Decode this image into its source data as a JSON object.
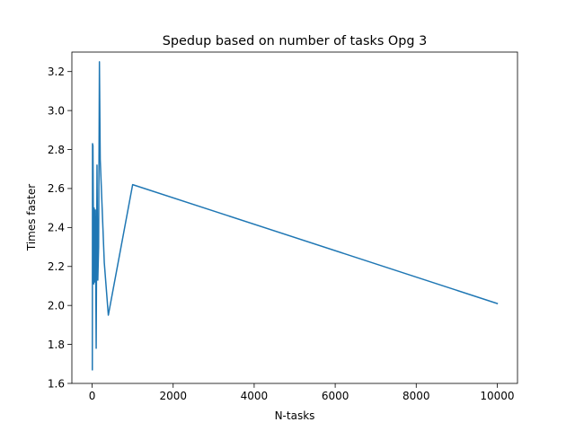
{
  "chart_data": {
    "type": "line",
    "title": "Spedup based on number of tasks Opg 3",
    "xlabel": "N-tasks",
    "ylabel": "Times faster",
    "xlim": [
      -500,
      10500
    ],
    "ylim": [
      1.6,
      3.3
    ],
    "xticks": [
      0,
      2000,
      4000,
      6000,
      8000,
      10000
    ],
    "xtick_labels": [
      "0",
      "2000",
      "4000",
      "6000",
      "8000",
      "10000"
    ],
    "yticks": [
      1.6,
      1.8,
      2.0,
      2.2,
      2.4,
      2.6,
      2.8,
      3.0,
      3.2
    ],
    "ytick_labels": [
      "1.6",
      "1.8",
      "2.0",
      "2.2",
      "2.4",
      "2.6",
      "2.8",
      "3.0",
      "3.2"
    ],
    "grid": false,
    "series": [
      {
        "color": "#1f77b4",
        "x": [
          5,
          10,
          20,
          40,
          50,
          60,
          80,
          100,
          120,
          140,
          160,
          180,
          200,
          300,
          400,
          1000,
          10000
        ],
        "y": [
          1.67,
          2.83,
          2.82,
          2.11,
          2.5,
          2.12,
          2.49,
          1.78,
          2.72,
          2.13,
          2.3,
          3.25,
          2.75,
          2.22,
          1.95,
          2.62,
          2.01
        ]
      }
    ]
  }
}
